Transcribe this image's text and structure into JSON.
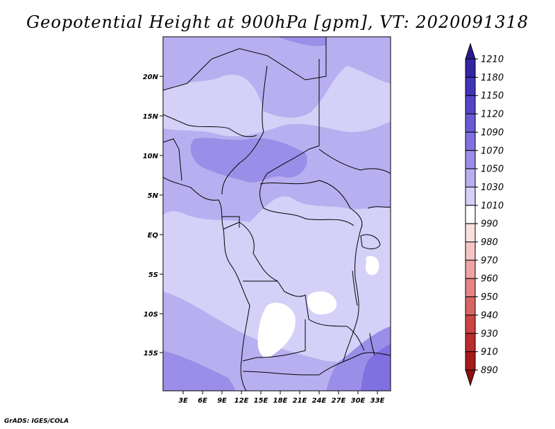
{
  "title": "Geopotential Height at 900hPa [gpm], VT: 2020091318",
  "credit": "GrADS: IGES/COLA",
  "map": {
    "lat_labels": [
      "20N",
      "15N",
      "10N",
      "5N",
      "EQ",
      "5S",
      "10S",
      "15S"
    ],
    "lon_labels": [
      "3E",
      "6E",
      "9E",
      "12E",
      "15E",
      "18E",
      "21E",
      "24E",
      "27E",
      "30E",
      "33E"
    ]
  },
  "colorbar": {
    "labels": [
      "1210",
      "1180",
      "1150",
      "1120",
      "1090",
      "1070",
      "1050",
      "1030",
      "1010",
      "990",
      "980",
      "970",
      "960",
      "950",
      "940",
      "930",
      "910",
      "890"
    ],
    "colors": [
      "#2a1a8c",
      "#3326a3",
      "#4035b8",
      "#5546c8",
      "#6a5ad6",
      "#8070e0",
      "#9b8ee8",
      "#b8aff0",
      "#d4d0f7",
      "#ffffff",
      "#fbe0e0",
      "#f5c4c4",
      "#eea4a4",
      "#e48484",
      "#d86464",
      "#cc4444",
      "#bb2c2c",
      "#a61a1a",
      "#8c1010"
    ]
  },
  "colors": {
    "land_base": "#d4d0f7",
    "fill_light": "#b8aff0",
    "fill_mid": "#9b8ee8",
    "fill_high": "#8070e0",
    "fill_white": "#ffffff"
  }
}
